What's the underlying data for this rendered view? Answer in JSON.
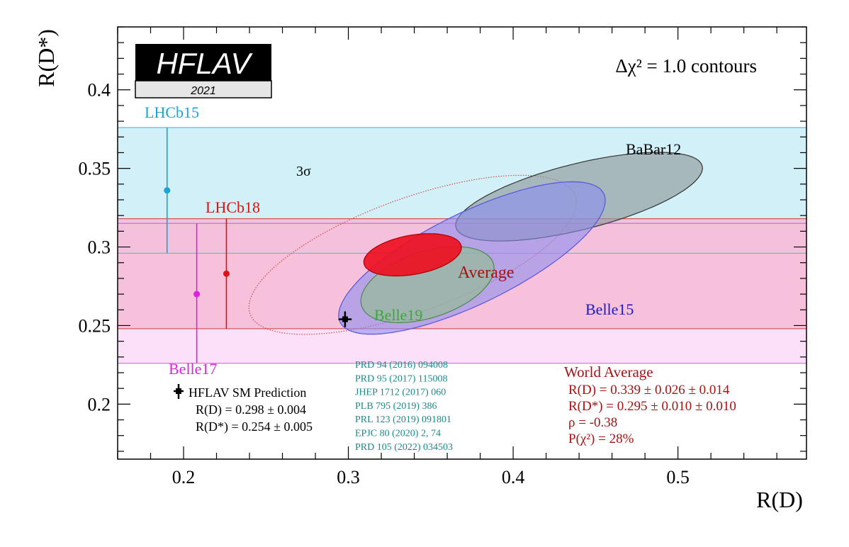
{
  "chart_data": {
    "type": "scatter",
    "xlabel": "R(D)",
    "ylabel": "R(D*)",
    "xlim": [
      0.16,
      0.578
    ],
    "ylim": [
      0.165,
      0.44
    ],
    "xticks": [
      0.2,
      0.3,
      0.4,
      0.5
    ],
    "xtick_labels": [
      "0.2",
      "0.3",
      "0.4",
      "0.5"
    ],
    "yticks": [
      0.2,
      0.25,
      0.3,
      0.35,
      0.4
    ],
    "ytick_labels": [
      "0.2",
      "0.25",
      "0.3",
      "0.35",
      "0.4"
    ],
    "grid": false,
    "logo": {
      "title": "HFLAV",
      "year": "2021"
    },
    "contour_label": "Δχ² = 1.0 contours",
    "bands": [
      {
        "name": "LHCb15",
        "ymin": 0.296,
        "ymax": 0.376,
        "color": "#bfeaf5",
        "line_color": "#4ec1e0"
      },
      {
        "name": "Belle17",
        "ymin": 0.226,
        "ymax": 0.315,
        "color": "#fbd2f5",
        "line_color": "#dd66dd"
      },
      {
        "name": "LHCb18",
        "ymin": 0.248,
        "ymax": 0.318,
        "color": "#f5b6d0",
        "line_color": "#d55858"
      }
    ],
    "measurements": [
      {
        "name": "LHCb15",
        "x": 0.19,
        "y": 0.336,
        "ylo": 0.296,
        "yhi": 0.376,
        "color": "#1aa3d8"
      },
      {
        "name": "Belle17",
        "x": 0.208,
        "y": 0.27,
        "ylo": 0.226,
        "yhi": 0.315,
        "color": "#dd22dd"
      },
      {
        "name": "LHCb18",
        "x": 0.226,
        "y": 0.283,
        "ylo": 0.248,
        "yhi": 0.318,
        "color": "#dd1111"
      }
    ],
    "ellipses": [
      {
        "name": "BaBar12",
        "cx": 0.44,
        "cy": 0.332,
        "rx": 0.077,
        "ry": 0.021,
        "angle": -14,
        "fill": "#8f9a9a",
        "stroke": "#333333",
        "opacity": 0.65
      },
      {
        "name": "Belle15",
        "cx": 0.375,
        "cy": 0.293,
        "rx": 0.089,
        "ry": 0.029,
        "angle": -26,
        "fill": "#8a8ef0",
        "stroke": "#5555dd",
        "opacity": 0.58
      },
      {
        "name": "Belle19",
        "cx": 0.348,
        "cy": 0.276,
        "rx": 0.042,
        "ry": 0.021,
        "angle": -18,
        "fill": "#8fc08a",
        "stroke": "#4a8a4a",
        "opacity": 0.6
      },
      {
        "name": "Average",
        "cx": 0.339,
        "cy": 0.295,
        "rx": 0.03,
        "ry": 0.0125,
        "angle": -10,
        "fill": "#ee1122",
        "stroke": "#aa0000",
        "opacity": 0.93
      }
    ],
    "sigma_ellipse": {
      "label": "3σ",
      "cx": 0.339,
      "cy": 0.295,
      "rx": 0.105,
      "ry": 0.036,
      "angle": -20,
      "color": "#d44a4a"
    },
    "sm_prediction": {
      "label": "HFLAV SM Prediction",
      "rd": "R(D) = 0.298 ± 0.004",
      "rds": "R(D*) = 0.254 ± 0.005",
      "x": 0.298,
      "y": 0.254,
      "xerr": 0.004,
      "yerr": 0.005
    },
    "references": [
      "PRD 94 (2016) 094008",
      "PRD 95 (2017) 115008",
      "JHEP 1712 (2017) 060",
      "PLB 795 (2019) 386",
      "PRL 123 (2019) 091801",
      "EPJC 80 (2020) 2, 74",
      "PRD 105 (2022) 034503"
    ],
    "world_average": {
      "title": "World Average",
      "rd": "R(D) = 0.339 ± 0.026 ± 0.014",
      "rds": "R(D*) = 0.295 ± 0.010 ± 0.010",
      "rho": "ρ = -0.38",
      "prob": "P(χ²) = 28%"
    },
    "colors": {
      "blue_label": "#1a1acc",
      "green_label": "#3aa83a",
      "teal_refs": "#1a8a8a",
      "dark_red": "#aa1111",
      "red_label": "#cc2222",
      "magenta_label": "#dd22dd",
      "cyan_label": "#1aa3d8"
    }
  }
}
